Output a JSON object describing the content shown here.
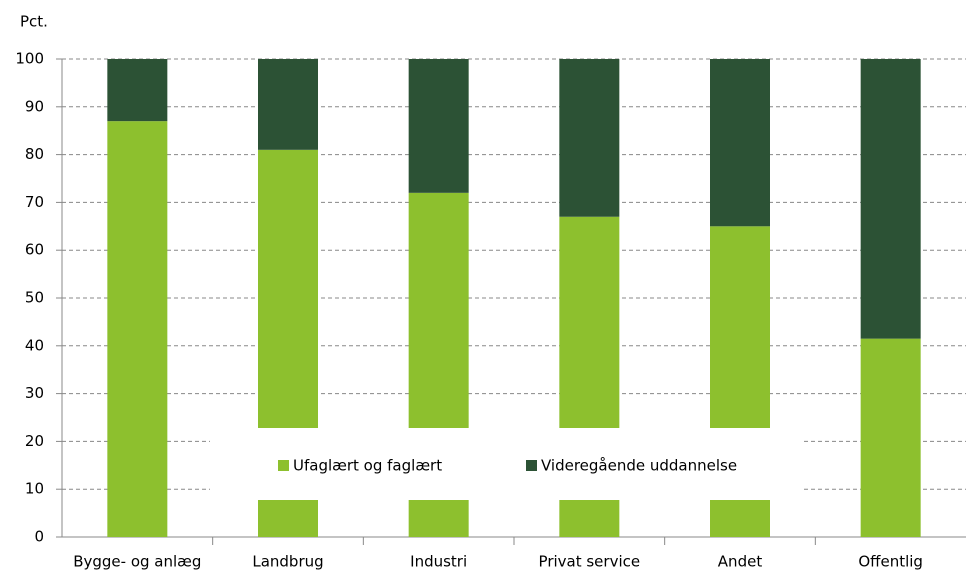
{
  "chart_data": {
    "type": "stacked_bar",
    "y_label": "Pct.",
    "categories": [
      "Bygge- og anlæg",
      "Landbrug",
      "Industri",
      "Privat service",
      "Andet",
      "Offentlig"
    ],
    "series": [
      {
        "name": "Ufaglært og faglært",
        "color": "#8dc02e",
        "values": [
          87,
          81,
          72,
          67,
          65,
          41.5
        ]
      },
      {
        "name": "Videregående uddannelse",
        "color": "#2c5235",
        "values": [
          13,
          19,
          28,
          33,
          35,
          58.5
        ]
      }
    ],
    "ylim": [
      0,
      100
    ],
    "yticks": [
      0,
      10,
      20,
      30,
      40,
      50,
      60,
      70,
      80,
      90,
      100
    ],
    "grid": true,
    "legend": "inside-bottom"
  }
}
